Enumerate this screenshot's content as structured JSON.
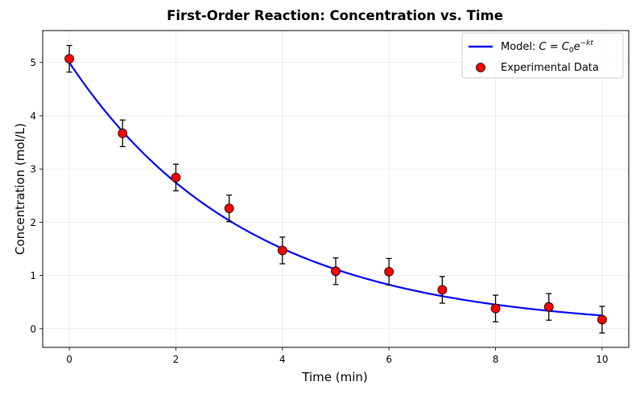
{
  "chart_data": {
    "type": "scatter",
    "title": "First-Order Reaction: Concentration vs. Time",
    "xlabel": "Time (min)",
    "ylabel": "Concentration (mol/L)",
    "xlim": [
      -0.5,
      10.5
    ],
    "ylim": [
      -0.35,
      5.6
    ],
    "xticks": [
      0,
      2,
      4,
      6,
      8,
      10
    ],
    "yticks": [
      0,
      1,
      2,
      3,
      4,
      5
    ],
    "grid": true,
    "legend_position": "top-right",
    "series": [
      {
        "name": "Model: C = C0e^-kt",
        "legend_parts": {
          "prefix": "Model: ",
          "c": "C",
          "eq": " = ",
          "c0": "C",
          "sub": "0",
          "e": "e",
          "exp": "−kt"
        },
        "kind": "line",
        "color": "#0000ff",
        "C0": 5.0,
        "k": 0.3,
        "x_range": [
          0,
          10
        ]
      },
      {
        "name": "Experimental Data",
        "kind": "scatter",
        "color": "#ff0000",
        "edge_color": "#000000",
        "x": [
          0,
          1,
          2,
          3,
          4,
          5,
          6,
          7,
          8,
          9,
          10
        ],
        "y": [
          5.07,
          3.67,
          2.84,
          2.26,
          1.47,
          1.08,
          1.07,
          0.73,
          0.38,
          0.41,
          0.17
        ],
        "yerr": 0.25
      }
    ]
  }
}
